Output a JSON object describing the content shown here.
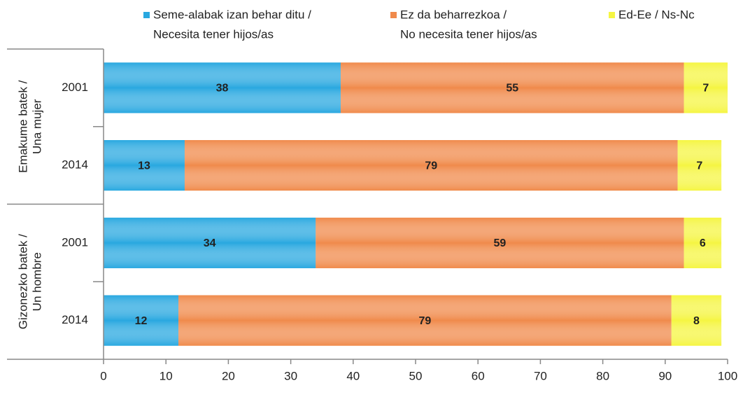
{
  "chart_data": {
    "type": "stacked-bar-horizontal",
    "categories": [
      "2001",
      "2014",
      "2001",
      "2014"
    ],
    "groups": [
      {
        "name": [
          "Emakume batek /",
          "Una mujer"
        ],
        "size": 2
      },
      {
        "name": [
          "Gizonezko batek /",
          "Un hombre"
        ],
        "size": 2
      }
    ],
    "series": [
      {
        "name": [
          "Seme-alabak izan behar ditu /",
          "Necesita tener hijos/as"
        ],
        "color": "#29a8e0",
        "values": [
          38,
          13,
          34,
          12
        ]
      },
      {
        "name": [
          "Ez da beharrezkoa /",
          "No necesita tener hijos/as"
        ],
        "color": "#f08a4b",
        "values": [
          55,
          79,
          59,
          79
        ]
      },
      {
        "name": [
          "Ed-Ee / Ns-Nc"
        ],
        "color": "#f5f542",
        "values": [
          7,
          7,
          6,
          8
        ]
      }
    ],
    "xlim": [
      0,
      100
    ],
    "xticks": [
      0,
      10,
      20,
      30,
      40,
      50,
      60,
      70,
      80,
      90,
      100
    ]
  }
}
